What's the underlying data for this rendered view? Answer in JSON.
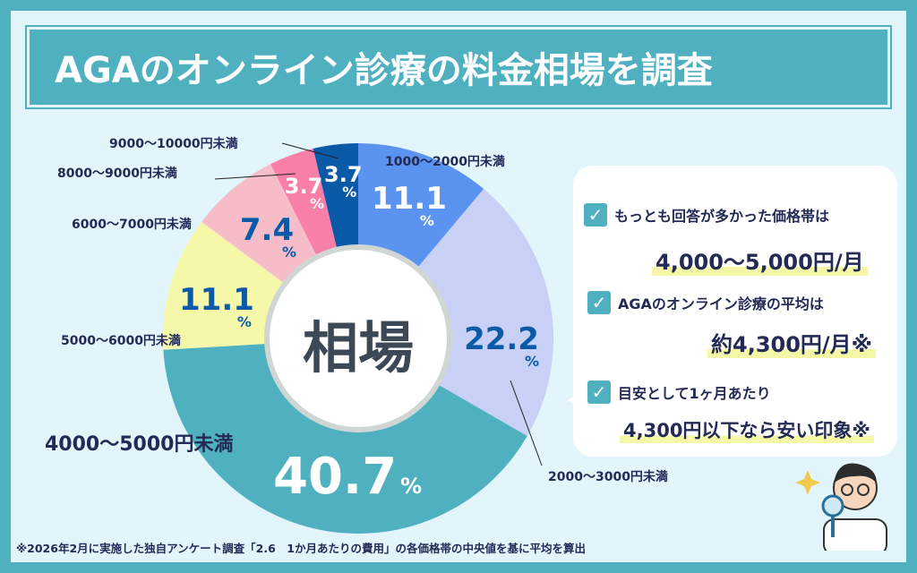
{
  "title": "AGAのオンライン診療の料金相場を調査",
  "center_label": "相場",
  "chart_data": {
    "type": "pie",
    "donut": true,
    "unit": "%",
    "categories": [
      "1000〜2000円未満",
      "2000〜3000円未満",
      "4000〜5000円未満",
      "5000〜6000円未満",
      "6000〜7000円未満",
      "8000〜9000円未満",
      "9000〜10000円未満"
    ],
    "values": [
      11.1,
      22.2,
      40.7,
      11.1,
      7.4,
      3.7,
      3.7
    ],
    "value_labels": [
      "11.1",
      "22.2",
      "40.7",
      "11.1",
      "7.4",
      "3.7",
      "3.7"
    ],
    "colors": [
      "#5b93f0",
      "#c9d0f5",
      "#4fb0c0",
      "#f6f8a9",
      "#f6bcc8",
      "#f77fa8",
      "#0b5aa8"
    ],
    "start": "12 o'clock, clockwise"
  },
  "panel": {
    "items": [
      {
        "check": "✓",
        "label": "もっとも回答が多かった価格帯は",
        "value": "4,000〜5,000円/月"
      },
      {
        "check": "✓",
        "label": "AGAのオンライン診療の平均は",
        "value": "約4,300円/月※"
      },
      {
        "check": "✓",
        "label": "目安として1ヶ月あたり",
        "value": "4,300円以下なら安い印象※"
      }
    ]
  },
  "footer": "※2026年2月に実施した独自アンケート調査「2.6　1か月あたりの費用」の各価格帯の中央値を基に平均を算出"
}
